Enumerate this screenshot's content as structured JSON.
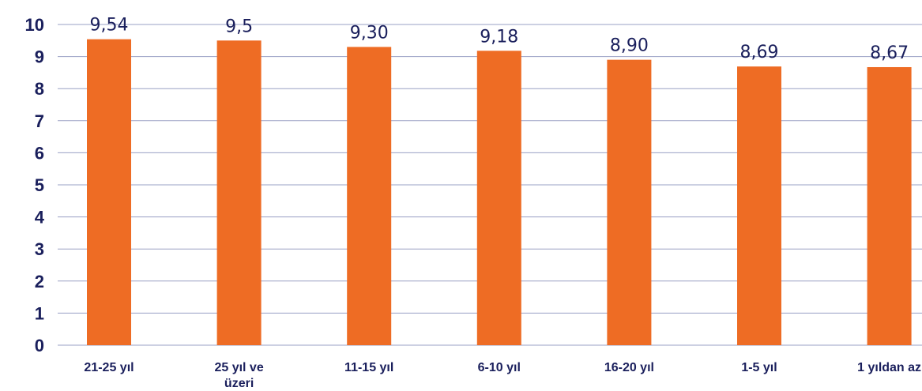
{
  "chart_data": {
    "type": "bar",
    "categories": [
      [
        "21-25 yıl"
      ],
      [
        "25 yıl ve",
        "üzeri"
      ],
      [
        "11-15 yıl"
      ],
      [
        "6-10 yıl"
      ],
      [
        "16-20 yıl"
      ],
      [
        "1-5 yıl"
      ],
      [
        "1 yıldan az"
      ]
    ],
    "values": [
      9.54,
      9.5,
      9.3,
      9.18,
      8.9,
      8.69,
      8.67
    ],
    "data_labels": [
      "9,54",
      "9,5",
      "9,30",
      "9,18",
      "8,90",
      "8,69",
      "8,67"
    ],
    "ylim": [
      0,
      10
    ],
    "yticks": [
      "0",
      "1",
      "2",
      "3",
      "4",
      "5",
      "6",
      "7",
      "8",
      "9",
      "10"
    ],
    "grid": true,
    "colors": {
      "bar": "#ee6c24",
      "text": "#1a1f5c",
      "grid": "#9aa0c4"
    }
  }
}
